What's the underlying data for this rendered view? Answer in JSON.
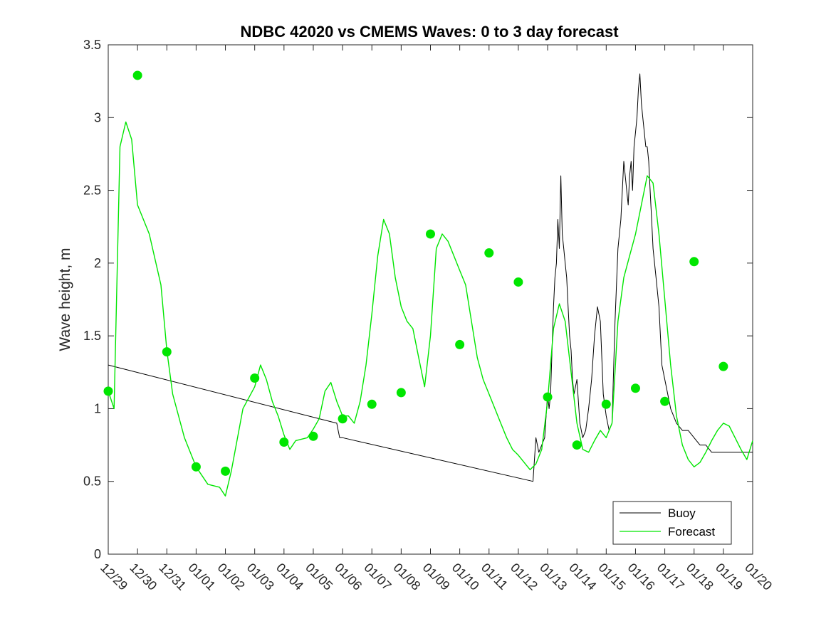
{
  "chart_data": {
    "type": "line",
    "title": "NDBC 42020 vs CMEMS Waves: 0 to 3 day forecast",
    "xlabel": "",
    "ylabel": "Wave height, m",
    "xlim": [
      0,
      22
    ],
    "ylim": [
      0,
      3.5
    ],
    "grid": false,
    "legend_position": "bottom-right",
    "x_tick_labels": [
      "12/29",
      "12/30",
      "12/31",
      "01/01",
      "01/02",
      "01/03",
      "01/04",
      "01/05",
      "01/06",
      "01/07",
      "01/08",
      "01/09",
      "01/10",
      "01/11",
      "01/12",
      "01/13",
      "01/14",
      "01/15",
      "01/16",
      "01/17",
      "01/18",
      "01/19",
      "01/20"
    ],
    "y_ticks": [
      0,
      0.5,
      1,
      1.5,
      2,
      2.5,
      3,
      3.5
    ],
    "y_tick_labels": [
      "0",
      "0.5",
      "1",
      "1.5",
      "2",
      "2.5",
      "3",
      "3.5"
    ],
    "x_unit": "days from 12/29",
    "colors": {
      "buoy": "#000000",
      "forecast": "#00e600",
      "markers": "#00e600"
    },
    "series": [
      {
        "name": "Buoy",
        "role": "buoy",
        "x": [
          0,
          7.8,
          7.85,
          7.9,
          8.0,
          14.5,
          14.6,
          14.7,
          14.8,
          14.9,
          15.0,
          15.05,
          15.1,
          15.15,
          15.2,
          15.25,
          15.3,
          15.35,
          15.4,
          15.45,
          15.5,
          15.55,
          15.6,
          15.65,
          15.7,
          15.75,
          15.8,
          15.85,
          15.9,
          16.0,
          16.1,
          16.2,
          16.3,
          16.4,
          16.5,
          16.6,
          16.7,
          16.8,
          16.9,
          17.0,
          17.1,
          17.2,
          17.3,
          17.4,
          17.5,
          17.6,
          17.7,
          17.75,
          17.8,
          17.85,
          17.9,
          17.95,
          18.0,
          18.05,
          18.1,
          18.15,
          18.2,
          18.25,
          18.3,
          18.35,
          18.4,
          18.45,
          18.5,
          18.55,
          18.6,
          18.65,
          18.7,
          18.8,
          18.9,
          19.0,
          19.2,
          19.4,
          19.6,
          19.8,
          20.0,
          20.2,
          20.4,
          20.6,
          20.8,
          21.0,
          21.2,
          21.4,
          21.6,
          21.8,
          22.0
        ],
        "y": [
          1.3,
          0.9,
          0.85,
          0.8,
          0.8,
          0.5,
          0.8,
          0.7,
          0.75,
          0.8,
          1.1,
          1.0,
          1.1,
          1.4,
          1.7,
          1.9,
          2.0,
          2.3,
          2.1,
          2.6,
          2.2,
          2.1,
          2.0,
          1.9,
          1.7,
          1.5,
          1.4,
          1.2,
          1.1,
          1.2,
          0.9,
          0.8,
          0.85,
          1.0,
          1.2,
          1.5,
          1.7,
          1.6,
          1.1,
          0.95,
          0.85,
          0.9,
          1.6,
          2.1,
          2.3,
          2.7,
          2.5,
          2.4,
          2.6,
          2.7,
          2.5,
          2.8,
          2.9,
          3.0,
          3.2,
          3.3,
          3.1,
          3.0,
          2.9,
          2.8,
          2.8,
          2.7,
          2.5,
          2.3,
          2.1,
          2.0,
          1.9,
          1.7,
          1.3,
          1.2,
          1.0,
          0.9,
          0.85,
          0.85,
          0.8,
          0.75,
          0.75,
          0.7,
          0.7,
          0.7,
          0.7,
          0.7,
          0.7,
          0.7,
          0.7
        ]
      },
      {
        "name": "Forecast",
        "role": "forecast",
        "x": [
          0,
          0.2,
          0.4,
          0.6,
          0.8,
          1.0,
          1.4,
          1.8,
          2.0,
          2.2,
          2.6,
          3.0,
          3.4,
          3.8,
          4.0,
          4.2,
          4.6,
          5.0,
          5.2,
          5.4,
          5.6,
          5.8,
          6.0,
          6.2,
          6.4,
          6.8,
          7.0,
          7.2,
          7.4,
          7.6,
          7.8,
          8.0,
          8.2,
          8.4,
          8.6,
          8.8,
          9.0,
          9.2,
          9.4,
          9.6,
          9.8,
          10.0,
          10.2,
          10.4,
          10.6,
          10.8,
          11.0,
          11.2,
          11.4,
          11.6,
          11.8,
          12.0,
          12.2,
          12.4,
          12.6,
          12.8,
          13.0,
          13.2,
          13.4,
          13.6,
          13.8,
          14.0,
          14.2,
          14.4,
          14.6,
          14.8,
          15.0,
          15.2,
          15.4,
          15.6,
          15.8,
          16.0,
          16.2,
          16.4,
          16.6,
          16.8,
          17.0,
          17.2,
          17.4,
          17.6,
          17.8,
          18.0,
          18.2,
          18.4,
          18.6,
          18.8,
          19.0,
          19.2,
          19.4,
          19.6,
          19.8,
          20.0,
          20.2,
          20.4,
          20.6,
          20.8,
          21.0,
          21.2,
          21.4,
          21.6,
          21.8,
          22.0
        ],
        "y": [
          1.12,
          1.0,
          2.8,
          2.97,
          2.85,
          2.4,
          2.2,
          1.85,
          1.4,
          1.1,
          0.8,
          0.6,
          0.48,
          0.46,
          0.4,
          0.57,
          1.0,
          1.15,
          1.3,
          1.2,
          1.05,
          0.95,
          0.82,
          0.72,
          0.78,
          0.8,
          0.86,
          0.93,
          1.12,
          1.18,
          1.05,
          0.95,
          0.95,
          0.9,
          1.05,
          1.3,
          1.65,
          2.05,
          2.3,
          2.2,
          1.9,
          1.7,
          1.6,
          1.55,
          1.35,
          1.15,
          1.5,
          2.1,
          2.2,
          2.15,
          2.05,
          1.95,
          1.85,
          1.6,
          1.35,
          1.2,
          1.1,
          1.0,
          0.9,
          0.8,
          0.72,
          0.68,
          0.63,
          0.58,
          0.62,
          0.72,
          1.05,
          1.55,
          1.72,
          1.6,
          1.25,
          0.9,
          0.72,
          0.7,
          0.78,
          0.85,
          0.8,
          0.9,
          1.6,
          1.9,
          2.05,
          2.2,
          2.4,
          2.6,
          2.55,
          2.2,
          1.75,
          1.3,
          0.95,
          0.75,
          0.65,
          0.6,
          0.63,
          0.7,
          0.78,
          0.85,
          0.9,
          0.88,
          0.8,
          0.72,
          0.65,
          0.78
        ]
      }
    ],
    "forecast_markers": {
      "x": [
        0,
        1,
        2,
        3,
        4,
        5,
        6,
        7,
        8,
        9,
        10,
        11,
        12,
        13,
        14,
        15,
        16,
        17,
        18,
        19,
        20,
        21
      ],
      "y": [
        1.12,
        3.29,
        1.39,
        0.6,
        0.57,
        1.21,
        0.77,
        0.81,
        0.93,
        1.03,
        1.11,
        2.2,
        1.44,
        2.07,
        1.87,
        1.08,
        0.75,
        1.03,
        1.14,
        1.05,
        2.01,
        1.29
      ]
    },
    "legend": {
      "entries": [
        "Buoy",
        "Forecast"
      ]
    }
  }
}
